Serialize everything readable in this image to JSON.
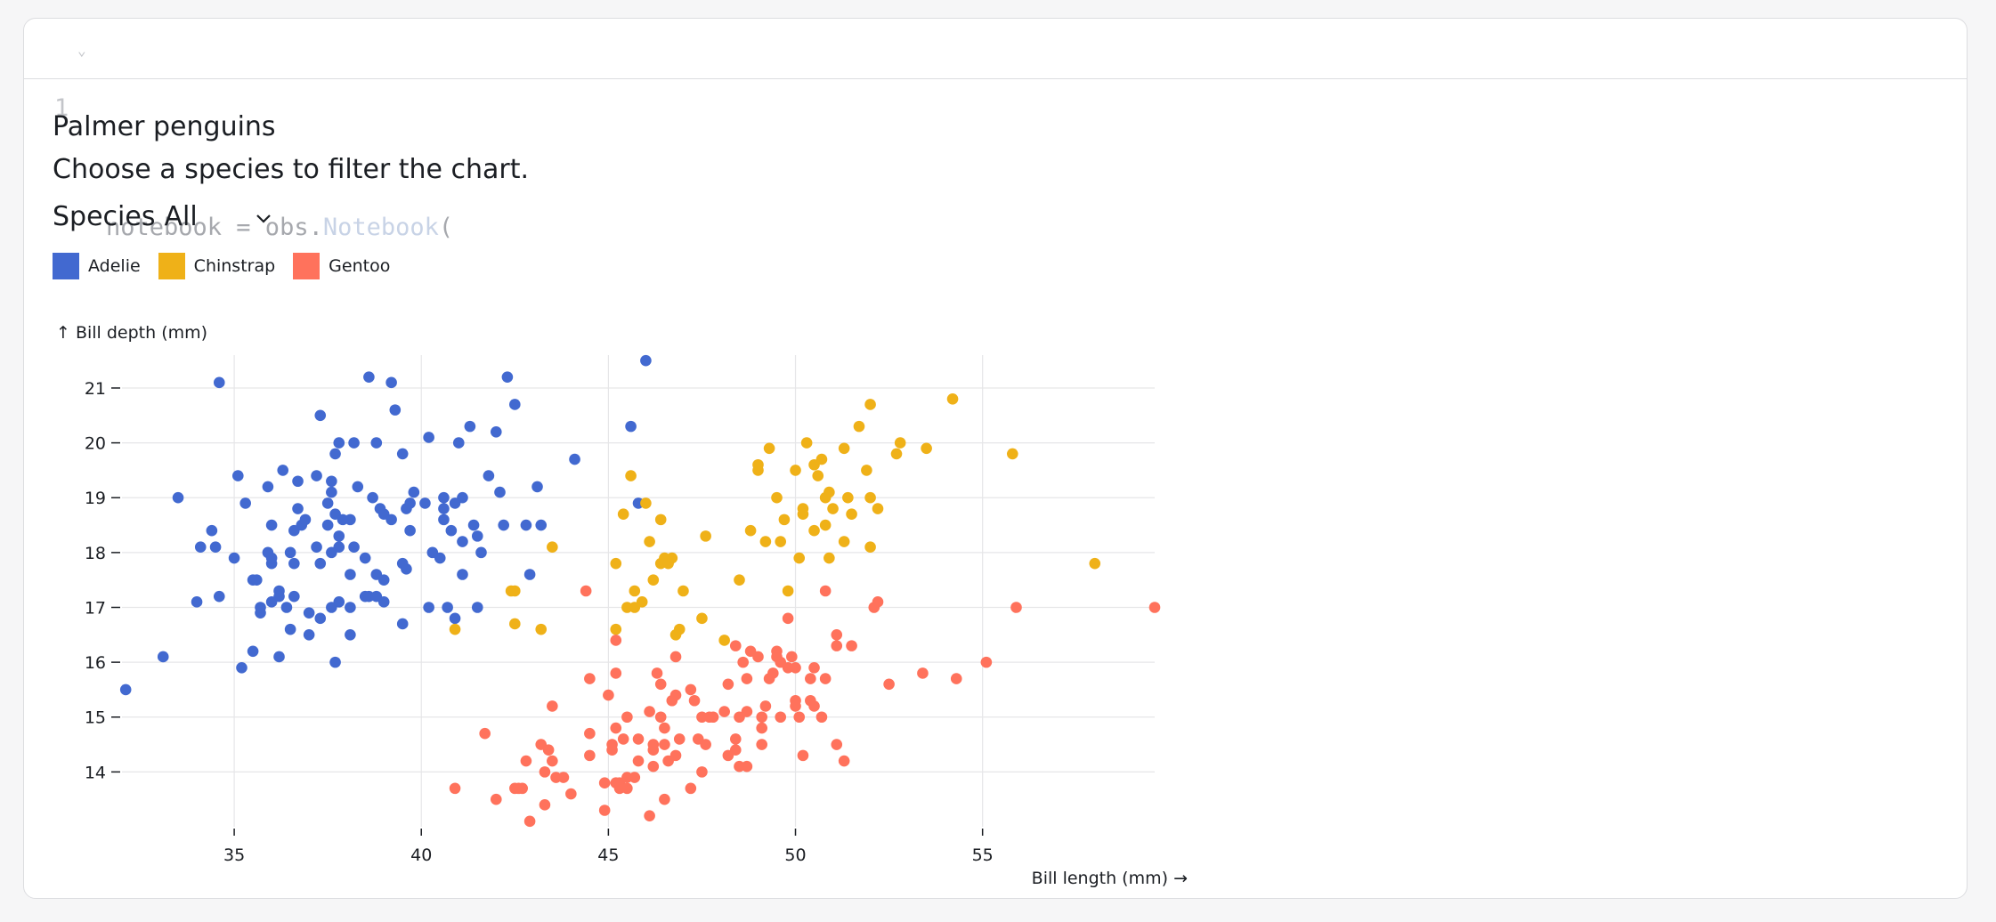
{
  "code": {
    "line_number": "1",
    "text_prefix": "notebook = obs.",
    "text_class": "Notebook",
    "text_suffix": "("
  },
  "header": {
    "title": "Palmer penguins",
    "description": "Choose a species to filter the chart."
  },
  "filter": {
    "label": "Species",
    "value": "All"
  },
  "legend": [
    {
      "name": "Adelie",
      "color": "#4269d0"
    },
    {
      "name": "Chinstrap",
      "color": "#efb118"
    },
    {
      "name": "Gentoo",
      "color": "#ff725c"
    }
  ],
  "chart_data": {
    "type": "scatter",
    "xlabel": "Bill length (mm) →",
    "ylabel": "↑ Bill depth (mm)",
    "xlim": [
      32,
      59.6
    ],
    "ylim": [
      13.0,
      21.6
    ],
    "xticks": [
      35,
      40,
      45,
      50,
      55
    ],
    "yticks": [
      14,
      15,
      16,
      17,
      18,
      19,
      20,
      21
    ],
    "grid": true,
    "legend_position": "top-left",
    "series": [
      {
        "name": "Adelie",
        "color": "#4269d0",
        "points": [
          [
            32.1,
            15.5
          ],
          [
            33.1,
            16.1
          ],
          [
            33.5,
            19.0
          ],
          [
            34.0,
            17.1
          ],
          [
            34.1,
            18.1
          ],
          [
            34.4,
            18.4
          ],
          [
            34.5,
            18.1
          ],
          [
            34.6,
            17.2
          ],
          [
            34.6,
            21.1
          ],
          [
            35.0,
            17.9
          ],
          [
            35.1,
            19.4
          ],
          [
            35.2,
            15.9
          ],
          [
            35.3,
            18.9
          ],
          [
            35.5,
            16.2
          ],
          [
            35.5,
            17.5
          ],
          [
            35.6,
            17.5
          ],
          [
            35.7,
            16.9
          ],
          [
            35.7,
            17.0
          ],
          [
            35.9,
            19.2
          ],
          [
            35.9,
            18.0
          ],
          [
            36.0,
            17.8
          ],
          [
            36.0,
            18.5
          ],
          [
            36.0,
            17.1
          ],
          [
            36.0,
            17.9
          ],
          [
            36.2,
            17.2
          ],
          [
            36.2,
            16.1
          ],
          [
            36.2,
            17.3
          ],
          [
            36.3,
            19.5
          ],
          [
            36.4,
            17.0
          ],
          [
            36.5,
            18.0
          ],
          [
            36.5,
            16.6
          ],
          [
            36.6,
            17.8
          ],
          [
            36.6,
            18.4
          ],
          [
            36.7,
            18.8
          ],
          [
            36.7,
            19.3
          ],
          [
            36.8,
            18.5
          ],
          [
            36.9,
            18.6
          ],
          [
            37.0,
            16.9
          ],
          [
            37.0,
            16.5
          ],
          [
            37.2,
            18.1
          ],
          [
            37.2,
            19.4
          ],
          [
            37.3,
            16.8
          ],
          [
            37.3,
            17.8
          ],
          [
            37.3,
            20.5
          ],
          [
            37.5,
            18.9
          ],
          [
            37.5,
            18.5
          ],
          [
            37.6,
            19.1
          ],
          [
            37.6,
            17.0
          ],
          [
            37.6,
            19.3
          ],
          [
            37.7,
            18.7
          ],
          [
            37.7,
            16.0
          ],
          [
            37.7,
            19.8
          ],
          [
            37.8,
            17.1
          ],
          [
            37.8,
            18.3
          ],
          [
            37.8,
            20.0
          ],
          [
            37.8,
            18.1
          ],
          [
            37.9,
            18.6
          ],
          [
            38.1,
            18.6
          ],
          [
            38.1,
            17.6
          ],
          [
            38.1,
            16.5
          ],
          [
            38.1,
            17.0
          ],
          [
            38.2,
            18.1
          ],
          [
            38.2,
            20.0
          ],
          [
            38.3,
            19.2
          ],
          [
            38.5,
            17.9
          ],
          [
            38.6,
            21.2
          ],
          [
            38.6,
            17.2
          ],
          [
            38.7,
            19.0
          ],
          [
            38.8,
            17.2
          ],
          [
            38.8,
            20.0
          ],
          [
            38.8,
            17.6
          ],
          [
            38.9,
            18.8
          ],
          [
            39.0,
            17.1
          ],
          [
            39.0,
            18.7
          ],
          [
            39.2,
            21.1
          ],
          [
            39.2,
            18.6
          ],
          [
            39.3,
            20.6
          ],
          [
            39.5,
            16.7
          ],
          [
            39.5,
            17.8
          ],
          [
            39.6,
            17.7
          ],
          [
            39.6,
            18.8
          ],
          [
            39.7,
            18.4
          ],
          [
            39.7,
            18.9
          ],
          [
            39.8,
            19.1
          ],
          [
            40.1,
            18.9
          ],
          [
            40.2,
            17.0
          ],
          [
            40.2,
            20.1
          ],
          [
            40.3,
            18.0
          ],
          [
            40.5,
            17.9
          ],
          [
            40.6,
            19.0
          ],
          [
            40.6,
            18.6
          ],
          [
            40.7,
            17.0
          ],
          [
            40.8,
            18.4
          ],
          [
            40.9,
            16.8
          ],
          [
            40.9,
            18.9
          ],
          [
            41.0,
            20.0
          ],
          [
            41.1,
            19.0
          ],
          [
            41.1,
            17.6
          ],
          [
            41.3,
            20.3
          ],
          [
            41.4,
            18.5
          ],
          [
            41.5,
            18.3
          ],
          [
            41.5,
            17.0
          ],
          [
            41.6,
            18.0
          ],
          [
            41.8,
            19.4
          ],
          [
            42.0,
            20.2
          ],
          [
            42.1,
            19.1
          ],
          [
            42.2,
            18.5
          ],
          [
            42.3,
            21.2
          ],
          [
            42.5,
            20.7
          ],
          [
            42.8,
            18.5
          ],
          [
            42.9,
            17.6
          ],
          [
            43.1,
            19.2
          ],
          [
            43.2,
            18.5
          ],
          [
            44.1,
            19.7
          ],
          [
            45.6,
            20.3
          ],
          [
            45.8,
            18.9
          ],
          [
            46.0,
            21.5
          ],
          [
            39.5,
            19.8
          ],
          [
            40.6,
            18.8
          ],
          [
            41.1,
            18.2
          ],
          [
            38.5,
            17.2
          ],
          [
            37.6,
            18.0
          ],
          [
            36.6,
            17.2
          ],
          [
            39.0,
            17.5
          ]
        ]
      },
      {
        "name": "Chinstrap",
        "color": "#efb118",
        "points": [
          [
            40.9,
            16.6
          ],
          [
            42.4,
            17.3
          ],
          [
            42.5,
            16.7
          ],
          [
            42.5,
            17.3
          ],
          [
            43.2,
            16.6
          ],
          [
            43.5,
            18.1
          ],
          [
            45.2,
            17.8
          ],
          [
            45.2,
            16.6
          ],
          [
            45.4,
            18.7
          ],
          [
            45.5,
            17.0
          ],
          [
            45.6,
            19.4
          ],
          [
            45.7,
            17.3
          ],
          [
            45.7,
            17.0
          ],
          [
            45.9,
            17.1
          ],
          [
            46.0,
            18.9
          ],
          [
            46.1,
            18.2
          ],
          [
            46.2,
            17.5
          ],
          [
            46.4,
            18.6
          ],
          [
            46.4,
            17.8
          ],
          [
            46.5,
            17.9
          ],
          [
            46.6,
            17.8
          ],
          [
            46.7,
            17.9
          ],
          [
            46.8,
            16.5
          ],
          [
            46.9,
            16.6
          ],
          [
            47.0,
            17.3
          ],
          [
            47.5,
            16.8
          ],
          [
            47.6,
            18.3
          ],
          [
            48.1,
            16.4
          ],
          [
            48.5,
            17.5
          ],
          [
            48.8,
            18.4
          ],
          [
            49.0,
            19.5
          ],
          [
            49.0,
            19.6
          ],
          [
            49.2,
            18.2
          ],
          [
            49.3,
            19.9
          ],
          [
            49.5,
            19.0
          ],
          [
            49.6,
            18.2
          ],
          [
            49.7,
            18.6
          ],
          [
            49.8,
            17.3
          ],
          [
            50.0,
            19.5
          ],
          [
            50.1,
            17.9
          ],
          [
            50.2,
            18.8
          ],
          [
            50.2,
            18.7
          ],
          [
            50.3,
            20.0
          ],
          [
            50.5,
            18.4
          ],
          [
            50.5,
            19.6
          ],
          [
            50.6,
            19.4
          ],
          [
            50.7,
            19.7
          ],
          [
            50.8,
            18.5
          ],
          [
            50.8,
            19.0
          ],
          [
            50.9,
            17.9
          ],
          [
            50.9,
            19.1
          ],
          [
            51.0,
            18.8
          ],
          [
            51.3,
            19.9
          ],
          [
            51.3,
            18.2
          ],
          [
            51.4,
            19.0
          ],
          [
            51.5,
            18.7
          ],
          [
            51.7,
            20.3
          ],
          [
            51.9,
            19.5
          ],
          [
            52.0,
            18.1
          ],
          [
            52.0,
            19.0
          ],
          [
            52.0,
            20.7
          ],
          [
            52.2,
            18.8
          ],
          [
            52.7,
            19.8
          ],
          [
            52.8,
            20.0
          ],
          [
            53.5,
            19.9
          ],
          [
            54.2,
            20.8
          ],
          [
            55.8,
            19.8
          ],
          [
            58.0,
            17.8
          ]
        ]
      },
      {
        "name": "Gentoo",
        "color": "#ff725c",
        "points": [
          [
            40.9,
            13.7
          ],
          [
            41.7,
            14.7
          ],
          [
            42.0,
            13.5
          ],
          [
            42.5,
            13.7
          ],
          [
            42.6,
            13.7
          ],
          [
            42.7,
            13.7
          ],
          [
            42.8,
            14.2
          ],
          [
            42.9,
            13.1
          ],
          [
            43.2,
            14.5
          ],
          [
            43.3,
            13.4
          ],
          [
            43.3,
            14.0
          ],
          [
            43.4,
            14.4
          ],
          [
            43.5,
            14.2
          ],
          [
            43.5,
            15.2
          ],
          [
            43.6,
            13.9
          ],
          [
            43.8,
            13.9
          ],
          [
            44.0,
            13.6
          ],
          [
            44.4,
            17.3
          ],
          [
            44.5,
            14.3
          ],
          [
            44.5,
            15.7
          ],
          [
            44.5,
            14.7
          ],
          [
            44.9,
            13.8
          ],
          [
            44.9,
            13.3
          ],
          [
            45.0,
            15.4
          ],
          [
            45.1,
            14.5
          ],
          [
            45.1,
            14.4
          ],
          [
            45.2,
            13.8
          ],
          [
            45.2,
            14.8
          ],
          [
            45.2,
            15.8
          ],
          [
            45.2,
            16.4
          ],
          [
            45.3,
            13.8
          ],
          [
            45.3,
            13.7
          ],
          [
            45.4,
            14.6
          ],
          [
            45.5,
            13.7
          ],
          [
            45.5,
            15.0
          ],
          [
            45.5,
            13.9
          ],
          [
            45.7,
            13.9
          ],
          [
            45.8,
            14.6
          ],
          [
            45.8,
            14.2
          ],
          [
            46.1,
            13.2
          ],
          [
            46.1,
            15.1
          ],
          [
            46.2,
            14.5
          ],
          [
            46.2,
            14.4
          ],
          [
            46.2,
            14.1
          ],
          [
            46.3,
            15.8
          ],
          [
            46.4,
            15.0
          ],
          [
            46.4,
            15.6
          ],
          [
            46.5,
            13.5
          ],
          [
            46.5,
            14.5
          ],
          [
            46.5,
            14.8
          ],
          [
            46.6,
            14.2
          ],
          [
            46.7,
            15.3
          ],
          [
            46.8,
            14.3
          ],
          [
            46.8,
            15.4
          ],
          [
            46.8,
            16.1
          ],
          [
            46.9,
            14.6
          ],
          [
            47.2,
            13.7
          ],
          [
            47.2,
            15.5
          ],
          [
            47.3,
            15.3
          ],
          [
            47.4,
            14.6
          ],
          [
            47.5,
            14.0
          ],
          [
            47.5,
            15.0
          ],
          [
            47.6,
            14.5
          ],
          [
            47.7,
            15.0
          ],
          [
            47.8,
            15.0
          ],
          [
            48.1,
            15.1
          ],
          [
            48.2,
            14.3
          ],
          [
            48.2,
            15.6
          ],
          [
            48.4,
            14.4
          ],
          [
            48.4,
            14.6
          ],
          [
            48.4,
            16.3
          ],
          [
            48.5,
            14.1
          ],
          [
            48.5,
            15.0
          ],
          [
            48.6,
            16.0
          ],
          [
            48.7,
            14.1
          ],
          [
            48.7,
            15.1
          ],
          [
            48.7,
            15.7
          ],
          [
            48.8,
            16.2
          ],
          [
            49.0,
            16.1
          ],
          [
            49.1,
            14.8
          ],
          [
            49.1,
            14.5
          ],
          [
            49.1,
            15.0
          ],
          [
            49.2,
            15.2
          ],
          [
            49.3,
            15.7
          ],
          [
            49.4,
            15.8
          ],
          [
            49.5,
            16.1
          ],
          [
            49.5,
            16.2
          ],
          [
            49.6,
            15.0
          ],
          [
            49.6,
            16.0
          ],
          [
            49.8,
            15.9
          ],
          [
            49.8,
            16.8
          ],
          [
            49.9,
            16.1
          ],
          [
            50.0,
            15.2
          ],
          [
            50.0,
            15.3
          ],
          [
            50.0,
            15.9
          ],
          [
            50.1,
            15.0
          ],
          [
            50.2,
            14.3
          ],
          [
            50.4,
            15.3
          ],
          [
            50.4,
            15.7
          ],
          [
            50.5,
            15.2
          ],
          [
            50.5,
            15.9
          ],
          [
            50.7,
            15.0
          ],
          [
            50.8,
            15.7
          ],
          [
            50.8,
            17.3
          ],
          [
            51.1,
            14.5
          ],
          [
            51.1,
            16.3
          ],
          [
            51.1,
            16.5
          ],
          [
            51.3,
            14.2
          ],
          [
            51.5,
            16.3
          ],
          [
            52.1,
            17.0
          ],
          [
            52.2,
            17.1
          ],
          [
            52.5,
            15.6
          ],
          [
            53.4,
            15.8
          ],
          [
            54.3,
            15.7
          ],
          [
            55.1,
            16.0
          ],
          [
            55.9,
            17.0
          ],
          [
            59.6,
            17.0
          ]
        ]
      }
    ]
  }
}
